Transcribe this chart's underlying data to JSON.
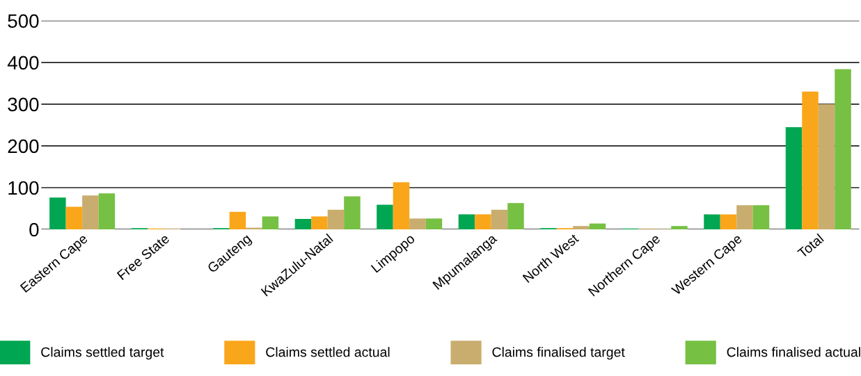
{
  "chart_data": {
    "type": "bar",
    "categories": [
      "Eastern Cape",
      "Free State",
      "Gauteng",
      "KwaZulu-Natal",
      "Limpopo",
      "Mpumalanga",
      "North West",
      "Northern Cape",
      "Western Cape",
      "Total"
    ],
    "series": [
      {
        "name": "Claims settled target",
        "color": "#00a651",
        "values": [
          76,
          3,
          3,
          25,
          59,
          36,
          3,
          2,
          36,
          245
        ]
      },
      {
        "name": "Claims settled actual",
        "color": "#faa61a",
        "values": [
          54,
          2,
          42,
          31,
          113,
          36,
          3,
          1,
          36,
          330
        ]
      },
      {
        "name": "Claims finalised target",
        "color": "#c8ad6e",
        "values": [
          81,
          2,
          4,
          47,
          26,
          47,
          8,
          1,
          58,
          300
        ]
      },
      {
        "name": "Claims finalised actual",
        "color": "#76c043",
        "values": [
          86,
          0,
          31,
          79,
          26,
          63,
          14,
          8,
          58,
          384
        ]
      }
    ],
    "ylim": [
      0,
      500
    ],
    "yticks": [
      0,
      100,
      200,
      300,
      400,
      500
    ],
    "grid": "y",
    "legend": "bottom"
  }
}
